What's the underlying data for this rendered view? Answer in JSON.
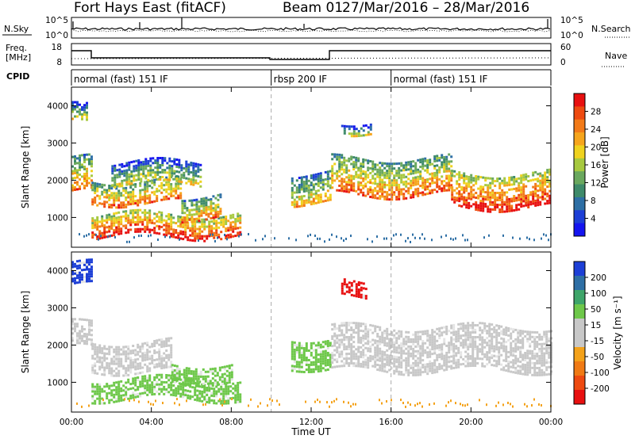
{
  "header": {
    "station": "Fort Hays East (fitACF)",
    "beam": "Beam 01",
    "date_range": "27/Mar/2016 – 28/Mar/2016"
  },
  "noise_panel": {
    "left_label": "N.Sky",
    "right_label": "N.Search",
    "left_ticks": [
      "10^5",
      "10^0"
    ],
    "right_ticks": [
      "10^5",
      "10^0"
    ]
  },
  "freq_panel": {
    "left_label_line1": "Freq.",
    "left_label_line2": "[MHz]",
    "right_label": "Nave",
    "left_ticks": [
      "18",
      "8"
    ],
    "right_ticks": [
      "60",
      "0"
    ]
  },
  "cpid": {
    "label": "CPID",
    "segments": [
      {
        "start_h": 0,
        "end_h": 10,
        "name": "normal (fast) 151 IF"
      },
      {
        "start_h": 10,
        "end_h": 16,
        "name": "rbsp 200 IF"
      },
      {
        "start_h": 16,
        "end_h": 24,
        "name": "normal (fast) 151 IF"
      }
    ]
  },
  "chart_data": [
    {
      "type": "heatmap",
      "quantity": "Power",
      "ylabel": "Slant Range [km]",
      "ylim": [
        200,
        4500
      ],
      "yticks": [
        1000,
        2000,
        3000,
        4000
      ],
      "colorbar_label": "Power [dB]",
      "colorbar_ticks": [
        "28",
        "24",
        "20",
        "16",
        "12",
        "8",
        "4"
      ],
      "colorbar_colors": [
        "#e81010",
        "#ee4a10",
        "#f27a18",
        "#f6a51c",
        "#efd21e",
        "#a7c93f",
        "#6aa85e",
        "#3e8a6a",
        "#2e6fa5",
        "#1d3fd6",
        "#1414f0"
      ],
      "bands": [
        {
          "t0": 0.0,
          "t1": 1.0,
          "r0": 1700,
          "r1": 2600,
          "level": 0.55
        },
        {
          "t0": 0.0,
          "t1": 0.8,
          "r0": 3500,
          "r1": 4000,
          "level": 0.35
        },
        {
          "t0": 1.0,
          "t1": 5.5,
          "r0": 1400,
          "r1": 2000,
          "level": 0.6
        },
        {
          "t0": 2.0,
          "t1": 6.5,
          "r0": 1900,
          "r1": 2500,
          "level": 0.35
        },
        {
          "t0": 1.0,
          "t1": 8.5,
          "r0": 500,
          "r1": 1100,
          "level": 0.75
        },
        {
          "t0": 5.5,
          "t1": 7.5,
          "r0": 1000,
          "r1": 1600,
          "level": 0.55
        },
        {
          "t0": 11.0,
          "t1": 13.0,
          "r0": 1400,
          "r1": 2200,
          "level": 0.45
        },
        {
          "t0": 13.0,
          "t1": 19.0,
          "r0": 1600,
          "r1": 2600,
          "level": 0.6
        },
        {
          "t0": 19.0,
          "t1": 24.0,
          "r0": 1300,
          "r1": 2200,
          "level": 0.75
        },
        {
          "t0": 13.5,
          "t1": 15.0,
          "r0": 3300,
          "r1": 3600,
          "level": 0.35
        }
      ]
    },
    {
      "type": "heatmap",
      "quantity": "Velocity",
      "xlabel": "Time UT",
      "xticks": [
        "00:00",
        "04:00",
        "08:00",
        "12:00",
        "16:00",
        "20:00",
        "00:00"
      ],
      "ylabel": "Slant Range [km]",
      "ylim": [
        200,
        4500
      ],
      "yticks": [
        1000,
        2000,
        3000,
        4000
      ],
      "colorbar_label": "Velocity [m s⁻¹]",
      "colorbar_ticks": [
        "200",
        "100",
        "50",
        "15",
        "-15",
        "-50",
        "-100",
        "-200"
      ],
      "colorbar_colors": [
        "#1d3fd6",
        "#2e6fa5",
        "#3ea56a",
        "#6ec84a",
        "#c8c8c8",
        "#c8c8c8",
        "#f4a21a",
        "#f07a14",
        "#ee4a10",
        "#e81010"
      ],
      "bands": [
        {
          "t0": 0.0,
          "t1": 1.0,
          "r0": 3600,
          "r1": 4200,
          "color": "#1d3fd6"
        },
        {
          "t0": 0.0,
          "t1": 1.0,
          "r0": 1900,
          "r1": 2600,
          "color": "#c8c8c8"
        },
        {
          "t0": 1.0,
          "t1": 5.0,
          "r0": 1300,
          "r1": 2100,
          "color": "#c8c8c8"
        },
        {
          "t0": 1.0,
          "t1": 8.5,
          "r0": 550,
          "r1": 1100,
          "color": "#6ec84a"
        },
        {
          "t0": 5.0,
          "t1": 8.0,
          "r0": 1000,
          "r1": 1500,
          "color": "#6ec84a"
        },
        {
          "t0": 11.0,
          "t1": 13.0,
          "r0": 1400,
          "r1": 2200,
          "color": "#6ec84a"
        },
        {
          "t0": 13.0,
          "t1": 24.0,
          "r0": 1300,
          "r1": 2500,
          "color": "#c8c8c8"
        },
        {
          "t0": 13.5,
          "t1": 14.8,
          "r0": 3300,
          "r1": 3700,
          "color": "#e81010"
        }
      ]
    }
  ],
  "time_axis": {
    "start_h": 0,
    "end_h": 24,
    "mode_change_lines_h": [
      10,
      16
    ]
  }
}
